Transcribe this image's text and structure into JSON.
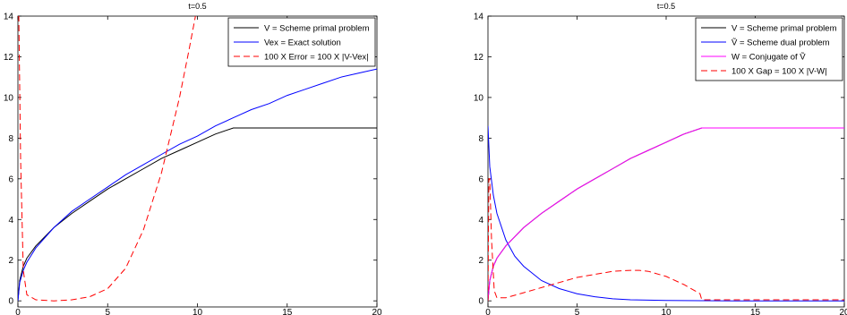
{
  "chart_data": [
    {
      "type": "line",
      "title": "t=0.5",
      "xlabel": "",
      "ylabel": "",
      "xlim": [
        0,
        20
      ],
      "ylim": [
        -0.3,
        14
      ],
      "xticks": [
        0,
        5,
        10,
        15,
        20
      ],
      "yticks": [
        0,
        2,
        4,
        6,
        8,
        10,
        12,
        14
      ],
      "legend_position": "top-right",
      "series": [
        {
          "name": "V = Scheme primal problem",
          "color": "#000000",
          "dash": "solid",
          "x": [
            0,
            0.1,
            0.3,
            0.5,
            1,
            2,
            3,
            4,
            5,
            6,
            7,
            8,
            9,
            10,
            11,
            12,
            13,
            14,
            16,
            18,
            20
          ],
          "y": [
            0,
            1.0,
            1.7,
            2.1,
            2.7,
            3.6,
            4.3,
            4.9,
            5.5,
            6.0,
            6.5,
            7.0,
            7.4,
            7.8,
            8.2,
            8.5,
            8.5,
            8.5,
            8.5,
            8.5,
            8.5
          ]
        },
        {
          "name": "Vex = Exact solution",
          "color": "#0000ff",
          "dash": "solid",
          "x": [
            0,
            0.1,
            0.3,
            0.5,
            1,
            2,
            3,
            4,
            5,
            6,
            7,
            8,
            9,
            10,
            11,
            12,
            13,
            14,
            15,
            16,
            17,
            18,
            19,
            20
          ],
          "y": [
            0,
            0.9,
            1.5,
            1.9,
            2.6,
            3.6,
            4.4,
            5.0,
            5.6,
            6.2,
            6.7,
            7.2,
            7.7,
            8.1,
            8.6,
            9.0,
            9.4,
            9.7,
            10.1,
            10.4,
            10.7,
            11.0,
            11.2,
            11.4
          ]
        },
        {
          "name": "100 X Error = 100 X |V-Vex|",
          "color": "#ff0000",
          "dash": "dashed",
          "x": [
            0,
            0.05,
            0.15,
            0.3,
            0.5,
            1,
            2,
            3,
            4,
            5,
            6,
            7,
            8,
            9,
            9.5,
            10
          ],
          "y": [
            14,
            14,
            7,
            1.5,
            0.3,
            0.05,
            0.0,
            0.05,
            0.2,
            0.6,
            1.6,
            3.5,
            6.3,
            10.0,
            12.2,
            14.5
          ]
        }
      ]
    },
    {
      "type": "line",
      "title": "t=0.5",
      "xlabel": "",
      "ylabel": "",
      "xlim": [
        0,
        20
      ],
      "ylim": [
        -0.3,
        14
      ],
      "xticks": [
        0,
        5,
        10,
        15,
        20
      ],
      "yticks": [
        0,
        2,
        4,
        6,
        8,
        10,
        12,
        14
      ],
      "legend_position": "top-right",
      "series": [
        {
          "name": "V = Scheme primal problem",
          "color": "#000000",
          "dash": "solid",
          "x": [
            0,
            0.1,
            0.3,
            0.5,
            1,
            2,
            3,
            4,
            5,
            6,
            7,
            8,
            9,
            10,
            11,
            12,
            13,
            14,
            16,
            18,
            20
          ],
          "y": [
            0,
            1.0,
            1.7,
            2.1,
            2.7,
            3.6,
            4.3,
            4.9,
            5.5,
            6.0,
            6.5,
            7.0,
            7.4,
            7.8,
            8.2,
            8.5,
            8.5,
            8.5,
            8.5,
            8.5,
            8.5
          ]
        },
        {
          "name": "Ṽ = Scheme dual problem",
          "color": "#0000ff",
          "dash": "solid",
          "x": [
            0,
            0.1,
            0.3,
            0.5,
            1,
            1.5,
            2,
            3,
            4,
            5,
            6,
            7,
            8,
            10,
            12,
            14,
            16,
            18,
            20
          ],
          "y": [
            8.6,
            6.6,
            5.2,
            4.3,
            3.0,
            2.2,
            1.7,
            1.0,
            0.6,
            0.35,
            0.2,
            0.1,
            0.05,
            0.02,
            0.01,
            0.0,
            0.0,
            0.0,
            0.0
          ]
        },
        {
          "name": "W = Conjugate of Ṽ",
          "color": "#ff00ff",
          "dash": "solid",
          "x": [
            0,
            0.1,
            0.3,
            0.5,
            1,
            2,
            3,
            4,
            5,
            6,
            7,
            8,
            9,
            10,
            11,
            12,
            13,
            14,
            16,
            18,
            20
          ],
          "y": [
            0,
            1.0,
            1.7,
            2.1,
            2.7,
            3.6,
            4.3,
            4.9,
            5.5,
            6.0,
            6.5,
            7.0,
            7.4,
            7.8,
            8.2,
            8.5,
            8.5,
            8.5,
            8.5,
            8.5,
            8.5
          ]
        },
        {
          "name": "100 X Gap = 100 X |V-W|",
          "color": "#ff0000",
          "dash": "dashed",
          "x": [
            0,
            0.05,
            0.1,
            0.2,
            0.35,
            0.5,
            1,
            2,
            3,
            4,
            5,
            6,
            7,
            8,
            8.5,
            9,
            10,
            11,
            11.9,
            12,
            14,
            16,
            18,
            20
          ],
          "y": [
            0,
            6.0,
            6.0,
            3.0,
            0.5,
            0.15,
            0.15,
            0.4,
            0.65,
            0.9,
            1.15,
            1.3,
            1.45,
            1.5,
            1.5,
            1.45,
            1.2,
            0.8,
            0.35,
            0.05,
            0.05,
            0.05,
            0.05,
            0.05
          ]
        }
      ]
    }
  ]
}
